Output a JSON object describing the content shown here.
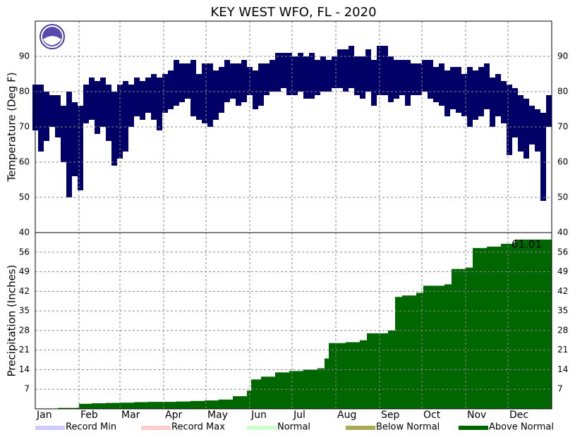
{
  "chart_data": [
    {
      "type": "range-bar",
      "title": "KEY WEST WFO, FL - 2020",
      "ylabel": "Temperature (Deg F)",
      "color": "#000066",
      "x": [
        0,
        4,
        8,
        12,
        16,
        20,
        24,
        28,
        32,
        36,
        40,
        44,
        48,
        52,
        56,
        60,
        64,
        68,
        72,
        76,
        80,
        84,
        88,
        92,
        96,
        100,
        104,
        108,
        112,
        116,
        120,
        124,
        128,
        132,
        136,
        140,
        144,
        148,
        152,
        156,
        160,
        164,
        168,
        172,
        176,
        180,
        184,
        188,
        192,
        196,
        200,
        204,
        208,
        212,
        216,
        220,
        224,
        228,
        232,
        236,
        240,
        244,
        248,
        252,
        256,
        260,
        264,
        268,
        272,
        276,
        280,
        284,
        288,
        292,
        296,
        300,
        304,
        308,
        312,
        316,
        320,
        324,
        328,
        332,
        336,
        340,
        344,
        348,
        352,
        356,
        360,
        364
      ],
      "high": [
        82,
        82,
        80,
        79,
        79,
        76,
        80,
        77,
        76,
        82,
        84,
        83,
        84,
        82,
        80,
        82,
        83,
        82,
        84,
        83,
        84,
        85,
        84,
        85,
        86,
        89,
        88,
        88,
        89,
        85,
        88,
        88,
        86,
        87,
        89,
        88,
        88,
        89,
        87,
        86,
        88,
        88,
        89,
        91,
        91,
        91,
        90,
        91,
        90,
        91,
        89,
        90,
        89,
        90,
        92,
        92,
        93,
        90,
        90,
        92,
        89,
        93,
        93,
        90,
        89,
        89,
        89,
        88,
        88,
        89,
        89,
        87,
        88,
        86,
        87,
        87,
        85,
        87,
        86,
        87,
        88,
        84,
        85,
        83,
        82,
        81,
        79,
        78,
        76,
        75,
        74,
        79
      ],
      "low": [
        69,
        63,
        66,
        70,
        67,
        60,
        50,
        56,
        52,
        71,
        72,
        68,
        70,
        66,
        59,
        61,
        63,
        70,
        73,
        72,
        74,
        72,
        69,
        74,
        75,
        76,
        77,
        78,
        73,
        72,
        71,
        70,
        72,
        74,
        77,
        78,
        76,
        77,
        79,
        75,
        76,
        79,
        80,
        80,
        81,
        79,
        79,
        80,
        78,
        78,
        79,
        80,
        80,
        81,
        81,
        80,
        81,
        79,
        78,
        80,
        76,
        79,
        79,
        77,
        78,
        79,
        76,
        79,
        79,
        80,
        78,
        77,
        76,
        73,
        75,
        74,
        73,
        70,
        72,
        73,
        75,
        70,
        73,
        71,
        62,
        67,
        63,
        61,
        65,
        63,
        49,
        70
      ],
      "ylim": [
        40,
        100
      ],
      "yticks": [
        40,
        50,
        60,
        70,
        80,
        90
      ],
      "grid": true
    },
    {
      "type": "area",
      "ylabel": "Precipitation (Inches)",
      "color": "#006600",
      "annotation": "61.01",
      "x": [
        0,
        8,
        16,
        24,
        30,
        31,
        40,
        50,
        60,
        70,
        80,
        90,
        100,
        110,
        120,
        130,
        140,
        150,
        153,
        160,
        170,
        180,
        190,
        200,
        205,
        208,
        220,
        230,
        235,
        250,
        255,
        260,
        270,
        275,
        290,
        295,
        305,
        310,
        320,
        330,
        340,
        366
      ],
      "values": [
        0,
        0,
        0.3,
        0.3,
        0.4,
        1.8,
        2,
        2.1,
        2.2,
        2.4,
        2.5,
        2.5,
        2.6,
        2.8,
        3,
        3.3,
        4.5,
        6.5,
        10.5,
        11.5,
        13,
        13.5,
        14,
        14.5,
        18,
        23.5,
        23.8,
        24.5,
        27,
        28,
        40,
        40.5,
        41.5,
        44,
        44.5,
        50,
        50.5,
        57.5,
        58,
        59,
        60.5,
        61.01
      ],
      "xlim": [
        0,
        366
      ],
      "xticks": [
        {
          "value": 0,
          "label": "Jan"
        },
        {
          "value": 31,
          "label": "Feb"
        },
        {
          "value": 60,
          "label": "Mar"
        },
        {
          "value": 91,
          "label": "Apr"
        },
        {
          "value": 121,
          "label": "May"
        },
        {
          "value": 152,
          "label": "Jun"
        },
        {
          "value": 182,
          "label": "Jul"
        },
        {
          "value": 213,
          "label": "Aug"
        },
        {
          "value": 244,
          "label": "Sep"
        },
        {
          "value": 274,
          "label": "Oct"
        },
        {
          "value": 305,
          "label": "Nov"
        },
        {
          "value": 335,
          "label": "Dec"
        }
      ],
      "ylim": [
        0,
        63
      ],
      "yticks": [
        7,
        14,
        21,
        28,
        35,
        42,
        49,
        56
      ],
      "grid": true,
      "legend": [
        {
          "label": "Record Min",
          "color": "#ccccff"
        },
        {
          "label": "Record Max",
          "color": "#ffcccc"
        },
        {
          "label": "Normal",
          "color": "#ccffcc"
        },
        {
          "label": "Below Normal",
          "color": "#aaaa55"
        },
        {
          "label": "Above Normal",
          "color": "#006600"
        }
      ]
    }
  ]
}
